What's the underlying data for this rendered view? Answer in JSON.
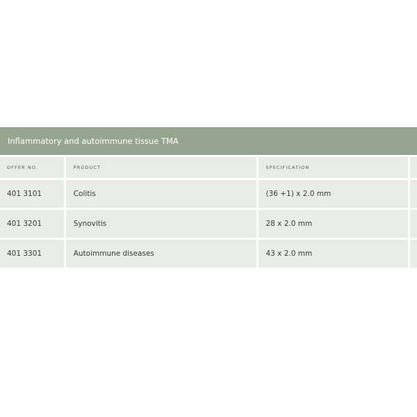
{
  "table": {
    "title": "Inflammatory and autoimmune tissue TMA",
    "columns": [
      "OFFER NO.",
      "PRODUCT",
      "SPECIFICATION"
    ],
    "rows": [
      {
        "offer_no": "401 3101",
        "product": "Colitis",
        "specification": "(36 +1) x 2.0 mm"
      },
      {
        "offer_no": "401 3201",
        "product": "Synovitis",
        "specification": "28 x 2.0 mm"
      },
      {
        "offer_no": "401 3301",
        "product": "Autoimmune diseases",
        "specification": "43 x 2.0 mm"
      }
    ]
  },
  "colors": {
    "header_band": "#97a590",
    "cell_background": "#e9ebe7"
  }
}
